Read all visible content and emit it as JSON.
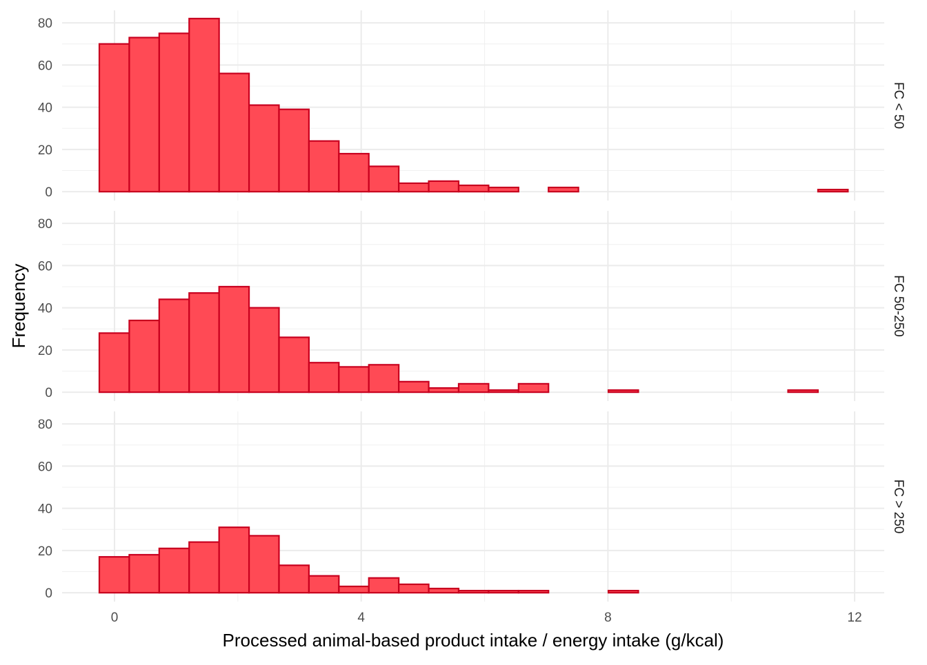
{
  "chart_data": {
    "type": "bar",
    "subtype": "faceted-histogram",
    "xlabel": "Processed animal-based product intake / energy intake (g/kcal)",
    "ylabel": "Frequency",
    "xlim": [
      -0.85,
      12.48
    ],
    "ylim": [
      -4.2,
      85.9
    ],
    "xticks": [
      0,
      4,
      8,
      12
    ],
    "xtick_labels": [
      "0",
      "4",
      "8",
      "12"
    ],
    "yticks": [
      0,
      20,
      40,
      60,
      80
    ],
    "ytick_labels": [
      "0",
      "20",
      "40",
      "60",
      "80"
    ],
    "grid": true,
    "bin_start": -0.246,
    "bin_width": 0.4855,
    "fill_color": "#FF4A55",
    "edge_color": "#C8001E",
    "panels": [
      {
        "label": "FC < 50",
        "values": [
          70,
          73,
          75,
          82,
          56,
          41,
          39,
          24,
          18,
          12,
          4,
          5,
          3,
          2,
          0,
          2,
          0,
          0,
          0,
          0,
          0,
          0,
          0,
          0,
          1
        ]
      },
      {
        "label": "FC 50-250",
        "values": [
          28,
          34,
          44,
          47,
          50,
          40,
          26,
          14,
          12,
          13,
          5,
          2,
          4,
          1,
          4,
          0,
          0,
          1,
          0,
          0,
          0,
          0,
          0,
          1,
          0
        ]
      },
      {
        "label": "FC > 250",
        "values": [
          17,
          18,
          21,
          24,
          31,
          27,
          13,
          8,
          3,
          7,
          4,
          2,
          1,
          1,
          1,
          0,
          0,
          1,
          0,
          0,
          0,
          0,
          0,
          0,
          0
        ]
      }
    ]
  }
}
